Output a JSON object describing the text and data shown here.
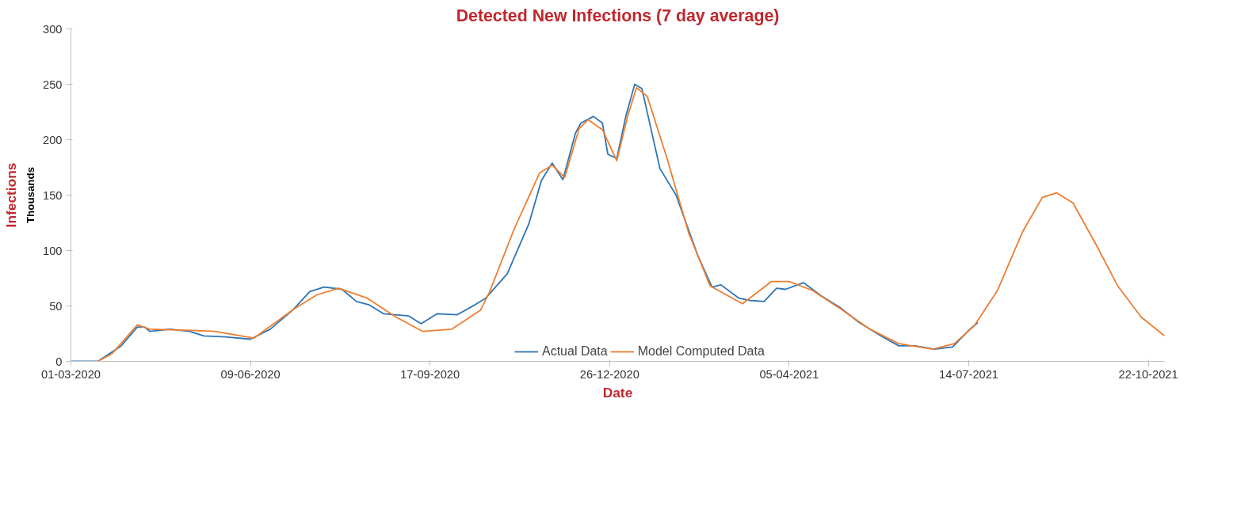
{
  "chart_data": {
    "type": "line",
    "title": "Detected New Infections (7 day average)",
    "xlabel": "Date",
    "ylabel": "Infections",
    "annotations": [
      "Thousands"
    ],
    "xlim": [
      "2020-03-01",
      "2021-10-31"
    ],
    "ylim": [
      0,
      300
    ],
    "xticks": [
      {
        "value": "2020-03-01",
        "label": "01-03-2020"
      },
      {
        "value": "2020-06-09",
        "label": "09-06-2020"
      },
      {
        "value": "2020-09-17",
        "label": "17-09-2020"
      },
      {
        "value": "2020-12-26",
        "label": "26-12-2020"
      },
      {
        "value": "2021-04-05",
        "label": "05-04-2021"
      },
      {
        "value": "2021-07-14",
        "label": "14-07-2021"
      },
      {
        "value": "2021-10-22",
        "label": "22-10-2021"
      }
    ],
    "yticks": [
      0,
      50,
      100,
      150,
      200,
      250,
      300
    ],
    "grid": false,
    "legend": "bottom",
    "marker": "none",
    "line_style": "solid",
    "series": [
      {
        "name": "Actual Data",
        "color": "#2e75b6",
        "x": [
          "2020-03-01",
          "2020-03-16",
          "2020-03-29",
          "2020-04-07",
          "2020-04-11",
          "2020-04-14",
          "2020-04-25",
          "2020-05-06",
          "2020-05-14",
          "2020-05-26",
          "2020-06-09",
          "2020-06-20",
          "2020-07-03",
          "2020-07-12",
          "2020-07-20",
          "2020-07-30",
          "2020-08-07",
          "2020-08-14",
          "2020-08-22",
          "2020-09-05",
          "2020-09-12",
          "2020-09-21",
          "2020-10-02",
          "2020-10-12",
          "2020-10-18",
          "2020-10-30",
          "2020-11-11",
          "2020-11-18",
          "2020-11-24",
          "2020-11-30",
          "2020-12-07",
          "2020-12-10",
          "2020-12-17",
          "2020-12-22",
          "2020-12-25",
          "2020-12-30",
          "2021-01-04",
          "2021-01-09",
          "2021-01-13",
          "2021-01-23",
          "2021-02-01",
          "2021-02-13",
          "2021-02-21",
          "2021-02-26",
          "2021-03-08",
          "2021-03-14",
          "2021-03-22",
          "2021-03-29",
          "2021-04-03",
          "2021-04-13",
          "2021-04-23",
          "2021-05-03",
          "2021-05-14",
          "2021-05-26",
          "2021-06-05",
          "2021-06-14",
          "2021-06-25",
          "2021-07-05",
          "2021-07-14",
          "2021-07-19"
        ],
        "values": [
          0,
          0,
          14,
          31,
          31,
          27,
          29,
          27,
          23,
          22,
          20,
          29,
          47,
          63,
          67,
          65,
          54,
          51,
          43,
          41,
          34,
          43,
          42,
          51,
          57,
          79,
          124,
          163,
          179,
          164,
          206,
          215,
          221,
          215,
          187,
          183,
          221,
          250,
          246,
          174,
          150,
          96,
          67,
          69,
          57,
          55,
          54,
          66,
          65,
          71,
          59,
          49,
          35,
          23,
          14,
          14,
          11,
          13,
          28,
          35
        ]
      },
      {
        "name": "Model Computed Data",
        "color": "#ed7d31",
        "x": [
          "2020-03-16",
          "2020-03-24",
          "2020-04-07",
          "2020-04-14",
          "2020-05-07",
          "2020-05-20",
          "2020-06-11",
          "2020-07-03",
          "2020-07-16",
          "2020-07-28",
          "2020-08-13",
          "2020-08-29",
          "2020-09-13",
          "2020-09-29",
          "2020-10-15",
          "2020-10-20",
          "2020-11-03",
          "2020-11-17",
          "2020-11-24",
          "2020-12-01",
          "2020-12-09",
          "2020-12-14",
          "2020-12-22",
          "2020-12-30",
          "2021-01-05",
          "2021-01-10",
          "2021-01-16",
          "2021-01-27",
          "2021-02-08",
          "2021-02-20",
          "2021-03-10",
          "2021-03-26",
          "2021-04-05",
          "2021-04-18",
          "2021-05-04",
          "2021-05-20",
          "2021-06-05",
          "2021-06-24",
          "2021-07-06",
          "2021-07-17",
          "2021-07-30",
          "2021-08-13",
          "2021-08-24",
          "2021-09-01",
          "2021-09-10",
          "2021-09-23",
          "2021-10-05",
          "2021-10-18",
          "2021-10-31"
        ],
        "values": [
          0,
          7,
          33,
          29,
          28,
          27,
          21,
          47,
          60,
          66,
          57,
          40,
          27,
          29,
          46,
          62,
          120,
          170,
          177,
          166,
          210,
          218,
          209,
          181,
          221,
          247,
          239,
          183,
          116,
          68,
          52,
          72,
          72,
          64,
          47,
          29,
          16,
          11,
          16,
          32,
          64,
          117,
          148,
          152,
          143,
          105,
          68,
          40,
          23
        ]
      }
    ]
  }
}
